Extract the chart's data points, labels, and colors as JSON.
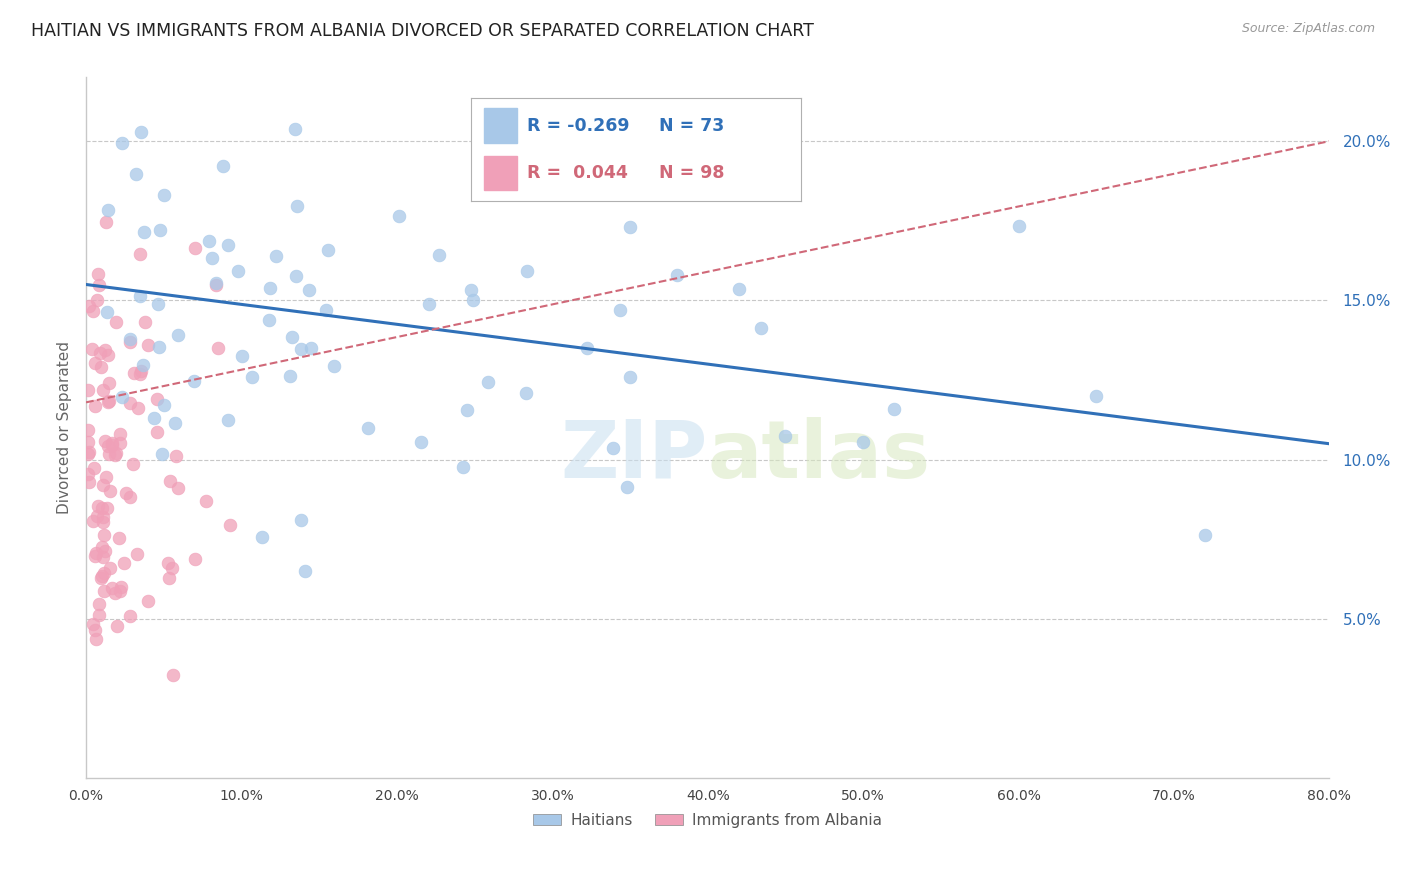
{
  "title": "HAITIAN VS IMMIGRANTS FROM ALBANIA DIVORCED OR SEPARATED CORRELATION CHART",
  "source": "Source: ZipAtlas.com",
  "ylabel": "Divorced or Separated",
  "xlim": [
    0.0,
    0.8
  ],
  "ylim": [
    0.0,
    0.22
  ],
  "yticks": [
    0.05,
    0.1,
    0.15,
    0.2
  ],
  "xticks": [
    0.0,
    0.1,
    0.2,
    0.3,
    0.4,
    0.5,
    0.6,
    0.7,
    0.8
  ],
  "background_color": "#ffffff",
  "grid_color": "#c8c8c8",
  "blue_color": "#a8c8e8",
  "pink_color": "#f0a0b8",
  "blue_line_color": "#3070b8",
  "pink_line_color": "#d06878",
  "R_blue": -0.269,
  "N_blue": 73,
  "R_pink": 0.044,
  "N_pink": 98,
  "legend_labels": [
    "Haitians",
    "Immigrants from Albania"
  ],
  "watermark": "ZIPatlas",
  "blue_line_x0": 0.0,
  "blue_line_x1": 0.8,
  "blue_line_y0": 0.155,
  "blue_line_y1": 0.105,
  "pink_line_x0": 0.0,
  "pink_line_x1": 0.8,
  "pink_line_y0": 0.118,
  "pink_line_y1": 0.2
}
